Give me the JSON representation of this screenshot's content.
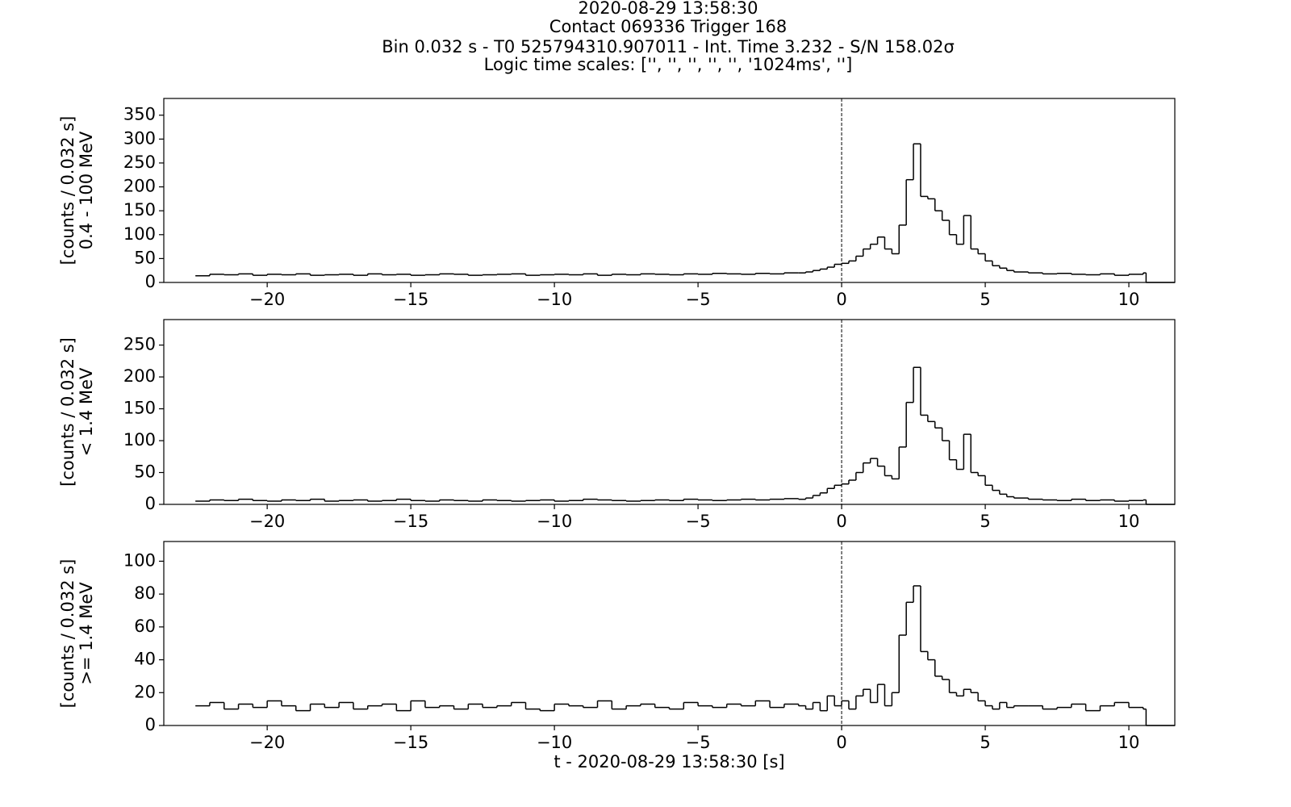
{
  "suptitle": [
    "2020-08-29 13:58:30",
    "Contact 069336   Trigger 168",
    "Bin 0.032 s -  T0 525794310.907011 - Int. Time 3.232 - S/N 158.02σ",
    "Logic time scales: ['', '', '', '', '', '1024ms', '']"
  ],
  "chart_data": [
    {
      "type": "step",
      "ylabel": [
        "[counts / 0.032 s]",
        "0.4 - 100 MeV"
      ],
      "color": "#000000",
      "vline": 0,
      "xlim": [
        -23.6,
        11.6
      ],
      "ylim": [
        0,
        385
      ],
      "yticks": [
        0,
        50,
        100,
        150,
        200,
        250,
        300,
        350
      ],
      "xticks": [
        {
          "value": -20,
          "label": "−20"
        },
        {
          "value": -15,
          "label": "−15"
        },
        {
          "value": -10,
          "label": "−10"
        },
        {
          "value": -5,
          "label": "−5"
        },
        0,
        5,
        10
      ],
      "x": [
        -22.5,
        -22,
        -21.5,
        -21,
        -20.5,
        -20,
        -19.5,
        -19,
        -18.5,
        -18,
        -17.5,
        -17,
        -16.5,
        -16,
        -15.5,
        -15,
        -14.5,
        -14,
        -13.5,
        -13,
        -12.5,
        -12,
        -11.5,
        -11,
        -10.5,
        -10,
        -9.5,
        -9,
        -8.5,
        -8,
        -7.5,
        -7,
        -6.5,
        -6,
        -5.5,
        -5,
        -4.5,
        -4,
        -3.5,
        -3,
        -2.5,
        -2,
        -1.5,
        -1.25,
        -1,
        -0.75,
        -0.5,
        -0.25,
        0,
        0.25,
        0.5,
        0.75,
        1,
        1.25,
        1.5,
        1.75,
        2,
        2.25,
        2.5,
        2.75,
        3,
        3.25,
        3.5,
        3.75,
        4,
        4.25,
        4.5,
        4.75,
        5,
        5.25,
        5.5,
        5.75,
        6,
        6.5,
        7,
        7.5,
        8,
        8.5,
        9,
        9.5,
        10,
        10.5,
        10.6
      ],
      "values": [
        14,
        17,
        16,
        18,
        15,
        17,
        16,
        18,
        15,
        16,
        17,
        15,
        18,
        16,
        17,
        15,
        16,
        18,
        17,
        15,
        16,
        17,
        18,
        15,
        16,
        17,
        16,
        18,
        15,
        17,
        16,
        18,
        17,
        16,
        18,
        17,
        19,
        18,
        17,
        19,
        18,
        20,
        20,
        22,
        25,
        28,
        32,
        38,
        40,
        45,
        55,
        70,
        80,
        95,
        70,
        60,
        120,
        215,
        290,
        180,
        175,
        150,
        130,
        100,
        80,
        140,
        70,
        60,
        45,
        35,
        30,
        25,
        22,
        20,
        18,
        19,
        17,
        16,
        18,
        15,
        17,
        20,
        0
      ]
    },
    {
      "type": "step",
      "ylabel": [
        "[counts / 0.032 s]",
        "< 1.4 MeV"
      ],
      "color": "#000000",
      "vline": 0,
      "xlim": [
        -23.6,
        11.6
      ],
      "ylim": [
        0,
        290
      ],
      "yticks": [
        0,
        50,
        100,
        150,
        200,
        250
      ],
      "xticks": [
        {
          "value": -20,
          "label": "−20"
        },
        {
          "value": -15,
          "label": "−15"
        },
        {
          "value": -10,
          "label": "−10"
        },
        {
          "value": -5,
          "label": "−5"
        },
        0,
        5,
        10
      ],
      "x": [
        -22.5,
        -22,
        -21.5,
        -21,
        -20.5,
        -20,
        -19.5,
        -19,
        -18.5,
        -18,
        -17.5,
        -17,
        -16.5,
        -16,
        -15.5,
        -15,
        -14.5,
        -14,
        -13.5,
        -13,
        -12.5,
        -12,
        -11.5,
        -11,
        -10.5,
        -10,
        -9.5,
        -9,
        -8.5,
        -8,
        -7.5,
        -7,
        -6.5,
        -6,
        -5.5,
        -5,
        -4.5,
        -4,
        -3.5,
        -3,
        -2.5,
        -2,
        -1.5,
        -1.25,
        -1,
        -0.75,
        -0.5,
        -0.25,
        0,
        0.25,
        0.5,
        0.75,
        1,
        1.25,
        1.5,
        1.75,
        2,
        2.25,
        2.5,
        2.75,
        3,
        3.25,
        3.5,
        3.75,
        4,
        4.25,
        4.5,
        4.75,
        5,
        5.25,
        5.5,
        5.75,
        6,
        6.5,
        7,
        7.5,
        8,
        8.5,
        9,
        9.5,
        10,
        10.5,
        10.6
      ],
      "values": [
        5,
        7,
        6,
        8,
        6,
        5,
        7,
        6,
        8,
        5,
        6,
        7,
        5,
        6,
        8,
        6,
        5,
        7,
        6,
        5,
        7,
        6,
        5,
        6,
        7,
        5,
        6,
        8,
        7,
        6,
        5,
        6,
        7,
        6,
        8,
        7,
        6,
        7,
        8,
        7,
        8,
        9,
        8,
        10,
        14,
        18,
        25,
        30,
        32,
        38,
        50,
        65,
        72,
        60,
        45,
        40,
        90,
        160,
        215,
        140,
        130,
        120,
        100,
        70,
        55,
        110,
        50,
        45,
        30,
        22,
        16,
        12,
        10,
        8,
        7,
        6,
        8,
        6,
        7,
        5,
        6,
        7,
        0
      ]
    },
    {
      "type": "step",
      "ylabel": [
        "[counts / 0.032 s]",
        ">= 1.4 MeV"
      ],
      "xlabel": "t - 2020-08-29 13:58:30 [s]",
      "color": "#000000",
      "vline": 0,
      "xlim": [
        -23.6,
        11.6
      ],
      "ylim": [
        0,
        112
      ],
      "yticks": [
        0,
        20,
        40,
        60,
        80,
        100
      ],
      "xticks": [
        {
          "value": -20,
          "label": "−20"
        },
        {
          "value": -15,
          "label": "−15"
        },
        {
          "value": -10,
          "label": "−10"
        },
        {
          "value": -5,
          "label": "−5"
        },
        0,
        5,
        10
      ],
      "x": [
        -22.5,
        -22,
        -21.5,
        -21,
        -20.5,
        -20,
        -19.5,
        -19,
        -18.5,
        -18,
        -17.5,
        -17,
        -16.5,
        -16,
        -15.5,
        -15,
        -14.5,
        -14,
        -13.5,
        -13,
        -12.5,
        -12,
        -11.5,
        -11,
        -10.5,
        -10,
        -9.5,
        -9,
        -8.5,
        -8,
        -7.5,
        -7,
        -6.5,
        -6,
        -5.5,
        -5,
        -4.5,
        -4,
        -3.5,
        -3,
        -2.5,
        -2,
        -1.5,
        -1.25,
        -1,
        -0.75,
        -0.5,
        -0.25,
        0,
        0.25,
        0.5,
        0.75,
        1,
        1.25,
        1.5,
        1.75,
        2,
        2.25,
        2.5,
        2.75,
        3,
        3.25,
        3.5,
        3.75,
        4,
        4.25,
        4.5,
        4.75,
        5,
        5.25,
        5.5,
        5.75,
        6,
        6.5,
        7,
        7.5,
        8,
        8.5,
        9,
        9.5,
        10,
        10.5,
        10.6
      ],
      "values": [
        12,
        14,
        10,
        13,
        11,
        15,
        12,
        9,
        13,
        11,
        14,
        10,
        12,
        13,
        9,
        15,
        11,
        12,
        10,
        13,
        11,
        12,
        14,
        10,
        9,
        13,
        12,
        11,
        15,
        10,
        12,
        13,
        11,
        10,
        14,
        12,
        11,
        13,
        12,
        15,
        11,
        13,
        12,
        10,
        14,
        9,
        18,
        12,
        15,
        10,
        18,
        22,
        14,
        25,
        12,
        20,
        55,
        75,
        85,
        45,
        40,
        30,
        28,
        20,
        18,
        22,
        20,
        15,
        12,
        10,
        14,
        11,
        12,
        12,
        10,
        11,
        13,
        9,
        12,
        14,
        11,
        10,
        0
      ]
    }
  ]
}
